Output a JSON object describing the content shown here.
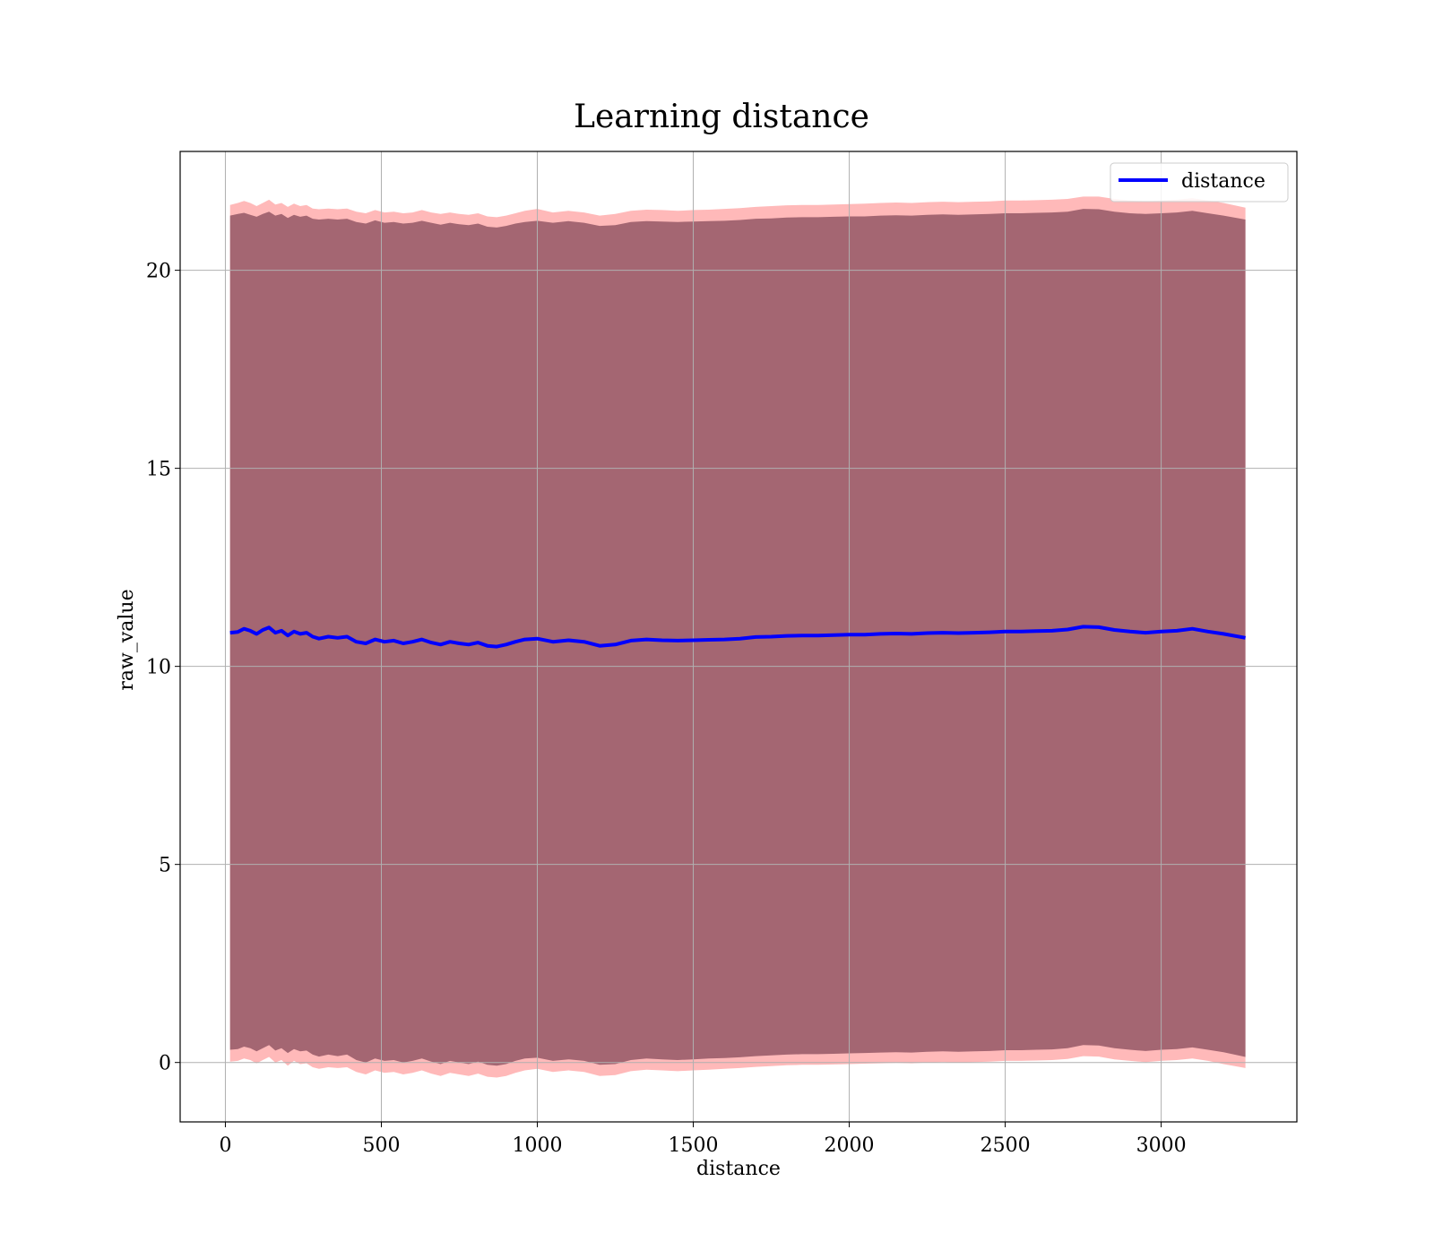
{
  "chart_data": {
    "type": "line",
    "title": "Learning distance",
    "xlabel": "distance",
    "ylabel": "raw_value",
    "xlim": [
      -145,
      3435
    ],
    "ylim": [
      -1.5,
      23.0
    ],
    "xticks": [
      0,
      500,
      1000,
      1500,
      2000,
      2500,
      3000
    ],
    "yticks": [
      0,
      5,
      10,
      15,
      20
    ],
    "grid": true,
    "legend_position": "top-right",
    "colors": {
      "line": "#0000ff",
      "outer_band": "#ff8080",
      "inner_band": "#8b4e5e",
      "grid": "#b0b0b0"
    },
    "series": [
      {
        "name": "distance",
        "x": [
          15,
          40,
          60,
          80,
          100,
          120,
          140,
          160,
          180,
          200,
          220,
          240,
          260,
          280,
          300,
          330,
          360,
          390,
          420,
          450,
          480,
          510,
          540,
          570,
          600,
          630,
          660,
          690,
          720,
          750,
          780,
          810,
          840,
          870,
          900,
          930,
          960,
          1000,
          1050,
          1100,
          1150,
          1200,
          1250,
          1300,
          1350,
          1400,
          1450,
          1500,
          1550,
          1600,
          1650,
          1700,
          1750,
          1800,
          1850,
          1900,
          1950,
          2000,
          2050,
          2100,
          2150,
          2200,
          2250,
          2300,
          2350,
          2400,
          2450,
          2500,
          2550,
          2600,
          2650,
          2700,
          2750,
          2800,
          2850,
          2900,
          2950,
          3000,
          3050,
          3100,
          3150,
          3200,
          3270
        ],
        "values": [
          10.85,
          10.87,
          10.95,
          10.9,
          10.82,
          10.92,
          10.98,
          10.85,
          10.9,
          10.78,
          10.88,
          10.82,
          10.85,
          10.75,
          10.7,
          10.75,
          10.72,
          10.75,
          10.62,
          10.58,
          10.68,
          10.62,
          10.65,
          10.58,
          10.62,
          10.68,
          10.6,
          10.55,
          10.62,
          10.58,
          10.55,
          10.6,
          10.52,
          10.5,
          10.55,
          10.62,
          10.68,
          10.7,
          10.62,
          10.66,
          10.62,
          10.52,
          10.55,
          10.65,
          10.68,
          10.66,
          10.65,
          10.66,
          10.67,
          10.68,
          10.7,
          10.74,
          10.75,
          10.77,
          10.78,
          10.78,
          10.79,
          10.8,
          10.8,
          10.82,
          10.83,
          10.82,
          10.84,
          10.85,
          10.84,
          10.85,
          10.86,
          10.88,
          10.88,
          10.89,
          10.9,
          10.93,
          11.0,
          10.99,
          10.92,
          10.88,
          10.85,
          10.88,
          10.9,
          10.95,
          10.88,
          10.82,
          10.72
        ],
        "inner_upper": [
          21.38,
          21.42,
          21.45,
          21.4,
          21.35,
          21.42,
          21.48,
          21.38,
          21.42,
          21.32,
          21.4,
          21.35,
          21.38,
          21.3,
          21.28,
          21.3,
          21.28,
          21.3,
          21.22,
          21.18,
          21.26,
          21.2,
          21.22,
          21.18,
          21.2,
          21.25,
          21.2,
          21.15,
          21.2,
          21.16,
          21.14,
          21.18,
          21.1,
          21.08,
          21.12,
          21.18,
          21.22,
          21.25,
          21.2,
          21.24,
          21.2,
          21.12,
          21.14,
          21.22,
          21.24,
          21.23,
          21.22,
          21.23,
          21.24,
          21.25,
          21.27,
          21.3,
          21.31,
          21.33,
          21.34,
          21.34,
          21.35,
          21.36,
          21.36,
          21.38,
          21.39,
          21.38,
          21.4,
          21.41,
          21.4,
          21.41,
          21.42,
          21.44,
          21.44,
          21.45,
          21.46,
          21.48,
          21.55,
          21.54,
          21.48,
          21.44,
          21.42,
          21.44,
          21.46,
          21.5,
          21.44,
          21.38,
          21.28
        ],
        "outer_upper": [
          21.65,
          21.7,
          21.75,
          21.7,
          21.62,
          21.7,
          21.78,
          21.66,
          21.7,
          21.6,
          21.68,
          21.62,
          21.65,
          21.56,
          21.54,
          21.56,
          21.54,
          21.56,
          21.48,
          21.44,
          21.52,
          21.46,
          21.48,
          21.44,
          21.46,
          21.52,
          21.46,
          21.42,
          21.46,
          21.42,
          21.4,
          21.44,
          21.36,
          21.34,
          21.38,
          21.44,
          21.5,
          21.55,
          21.46,
          21.5,
          21.46,
          21.38,
          21.42,
          21.5,
          21.53,
          21.52,
          21.5,
          21.52,
          21.53,
          21.55,
          21.57,
          21.6,
          21.62,
          21.64,
          21.65,
          21.65,
          21.66,
          21.67,
          21.68,
          21.7,
          21.71,
          21.7,
          21.72,
          21.73,
          21.72,
          21.73,
          21.74,
          21.76,
          21.76,
          21.77,
          21.78,
          21.8,
          21.86,
          21.86,
          21.8,
          21.76,
          21.74,
          21.76,
          21.78,
          21.82,
          21.76,
          21.7,
          21.58
        ],
        "inner_lower": [
          0.32,
          0.34,
          0.4,
          0.36,
          0.28,
          0.36,
          0.44,
          0.3,
          0.36,
          0.24,
          0.34,
          0.28,
          0.3,
          0.2,
          0.15,
          0.2,
          0.16,
          0.2,
          0.06,
          0.0,
          0.1,
          0.04,
          0.06,
          0.0,
          0.04,
          0.1,
          0.02,
          -0.04,
          0.04,
          0.0,
          -0.04,
          0.02,
          -0.06,
          -0.08,
          -0.04,
          0.04,
          0.1,
          0.12,
          0.04,
          0.08,
          0.04,
          -0.06,
          -0.04,
          0.06,
          0.1,
          0.08,
          0.06,
          0.08,
          0.1,
          0.11,
          0.13,
          0.16,
          0.18,
          0.2,
          0.21,
          0.21,
          0.22,
          0.23,
          0.24,
          0.25,
          0.26,
          0.25,
          0.27,
          0.28,
          0.27,
          0.28,
          0.29,
          0.31,
          0.31,
          0.32,
          0.33,
          0.36,
          0.44,
          0.43,
          0.36,
          0.32,
          0.29,
          0.32,
          0.34,
          0.38,
          0.32,
          0.26,
          0.14
        ],
        "outer_lower": [
          0.02,
          0.04,
          0.1,
          0.06,
          -0.02,
          0.06,
          0.14,
          0.0,
          0.06,
          -0.08,
          0.04,
          -0.04,
          -0.02,
          -0.12,
          -0.16,
          -0.12,
          -0.14,
          -0.12,
          -0.24,
          -0.3,
          -0.2,
          -0.26,
          -0.24,
          -0.3,
          -0.26,
          -0.2,
          -0.28,
          -0.34,
          -0.26,
          -0.3,
          -0.34,
          -0.28,
          -0.36,
          -0.38,
          -0.34,
          -0.26,
          -0.2,
          -0.16,
          -0.24,
          -0.2,
          -0.24,
          -0.34,
          -0.32,
          -0.22,
          -0.18,
          -0.2,
          -0.22,
          -0.2,
          -0.18,
          -0.16,
          -0.14,
          -0.11,
          -0.09,
          -0.07,
          -0.06,
          -0.06,
          -0.05,
          -0.04,
          -0.03,
          -0.02,
          -0.01,
          -0.02,
          0.0,
          0.01,
          0.0,
          0.01,
          0.02,
          0.04,
          0.04,
          0.05,
          0.06,
          0.09,
          0.16,
          0.15,
          0.08,
          0.04,
          0.01,
          0.04,
          0.06,
          0.1,
          0.04,
          -0.04,
          -0.14
        ]
      }
    ]
  }
}
